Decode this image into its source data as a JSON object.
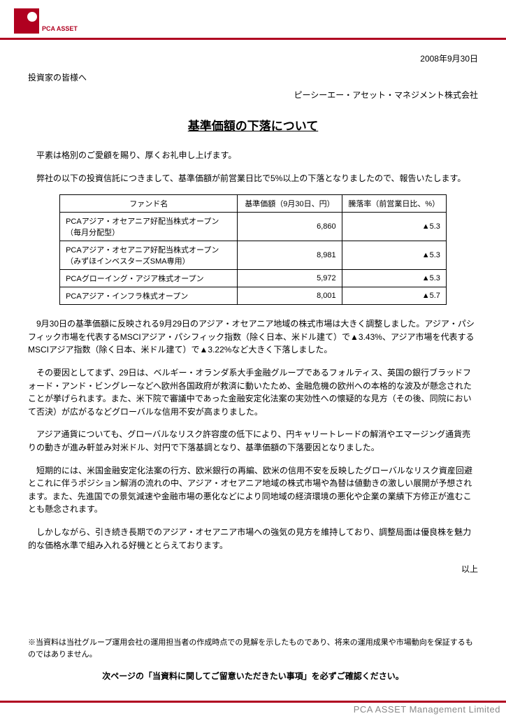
{
  "brand": {
    "logo_text": "PCA ASSET",
    "footer_text": "PCA ASSET Management Limited",
    "accent_color": "#b00020"
  },
  "header": {
    "date": "2008年9月30日",
    "addressee": "投資家の皆様へ",
    "company": "ピーシーエー・アセット・マネジメント株式会社"
  },
  "title": "基準価額の下落について",
  "intro_para1": "平素は格別のご愛顧を賜り、厚くお礼申し上げます。",
  "intro_para2": "弊社の以下の投資信託につきまして、基準価額が前営業日比で5%以上の下落となりましたので、報告いたします。",
  "table": {
    "columns": [
      "ファンド名",
      "基準価額（9月30日、円）",
      "騰落率（前営業日比、%）"
    ],
    "col_widths": [
      "46%",
      "27%",
      "27%"
    ],
    "rows": [
      [
        "PCAアジア・オセアニア好配当株式オープン（毎月分配型）",
        "6,860",
        "▲5.3"
      ],
      [
        "PCAアジア・オセアニア好配当株式オープン（みずほインベスターズSMA専用）",
        "8,981",
        "▲5.3"
      ],
      [
        "PCAグローイング・アジア株式オープン",
        "5,972",
        "▲5.3"
      ],
      [
        "PCAアジア・インフラ株式オープン",
        "8,001",
        "▲5.7"
      ]
    ]
  },
  "body_paras": [
    "9月30日の基準価額に反映される9月29日のアジア・オセアニア地域の株式市場は大きく調整しました。アジア・パシフィック市場を代表するMSCIアジア・パシフィック指数（除く日本、米ドル建て）で▲3.43%、アジア市場を代表するMSCIアジア指数（除く日本、米ドル建て）で▲3.22%など大きく下落しました。",
    "その要因としてまず、29日は、ベルギー・オランダ系大手金融グループであるフォルティス、英国の銀行ブラッドフォード・アンド・ビングレーなどへ欧州各国政府が救済に動いたため、金融危機の欧州への本格的な波及が懸念されたことが挙げられます。また、米下院で審議中であった金融安定化法案の実効性への懐疑的な見方（その後、同院において否決）が広がるなどグローバルな信用不安が高まりました。",
    "アジア通貨についても、グローバルなリスク許容度の低下により、円キャリートレードの解消やエマージング通貨売りの動きが進み軒並み対米ドル、対円で下落基調となり、基準価額の下落要因となりました。",
    "短期的には、米国金融安定化法案の行方、欧米銀行の再編、欧米の信用不安を反映したグローバルなリスク資産回避とこれに伴うポジション解消の流れの中、アジア・オセアニア地域の株式市場や為替は値動きの激しい展開が予想されます。また、先進国での景気減速や金融市場の悪化などにより同地域の経済環境の悪化や企業の業績下方修正が進むことも懸念されます。",
    "しかしながら、引き続き長期でのアジア・オセアニア市場への強気の見方を維持しており、調整局面は優良株を魅力的な価格水準で組み入れる好機ととらえております。"
  ],
  "closing": "以上",
  "footnote": "※当資料は当社グループ運用会社の運用担当者の作成時点での見解を示したものであり、将来の運用成果や市場動向を保証するものではありません。",
  "reminder": "次ページの「当資料に関してご留意いただきたい事項」を必ずご確認ください。"
}
